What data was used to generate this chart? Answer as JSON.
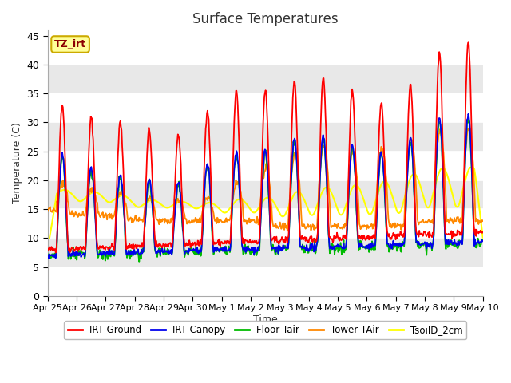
{
  "title": "Surface Temperatures",
  "xlabel": "Time",
  "ylabel": "Temperature (C)",
  "ylim": [
    0,
    46
  ],
  "yticks": [
    0,
    5,
    10,
    15,
    20,
    25,
    30,
    35,
    40,
    45
  ],
  "series_colors": {
    "IRT Ground": "#FF0000",
    "IRT Canopy": "#0000EE",
    "Floor Tair": "#00BB00",
    "Tower TAir": "#FF8800",
    "TsoilD_2cm": "#FFFF00"
  },
  "annotation_text": "TZ_irt",
  "annotation_color": "#8B0000",
  "annotation_bg": "#FFFF99",
  "annotation_border": "#CCAA00",
  "x_tick_labels": [
    "Apr 25",
    "Apr 26",
    "Apr 27",
    "Apr 28",
    "Apr 29",
    "Apr 30",
    "May 1",
    "May 2",
    "May 3",
    "May 4",
    "May 5",
    "May 6",
    "May 7",
    "May 8",
    "May 9",
    "May 10"
  ],
  "x_tick_positions": [
    0,
    1,
    2,
    3,
    4,
    5,
    6,
    7,
    8,
    9,
    10,
    11,
    12,
    13,
    14,
    15
  ],
  "band_colors": [
    "#FFFFFF",
    "#E8E8E8"
  ],
  "band_boundaries": [
    0,
    5,
    10,
    15,
    20,
    25,
    30,
    35,
    40,
    45
  ]
}
